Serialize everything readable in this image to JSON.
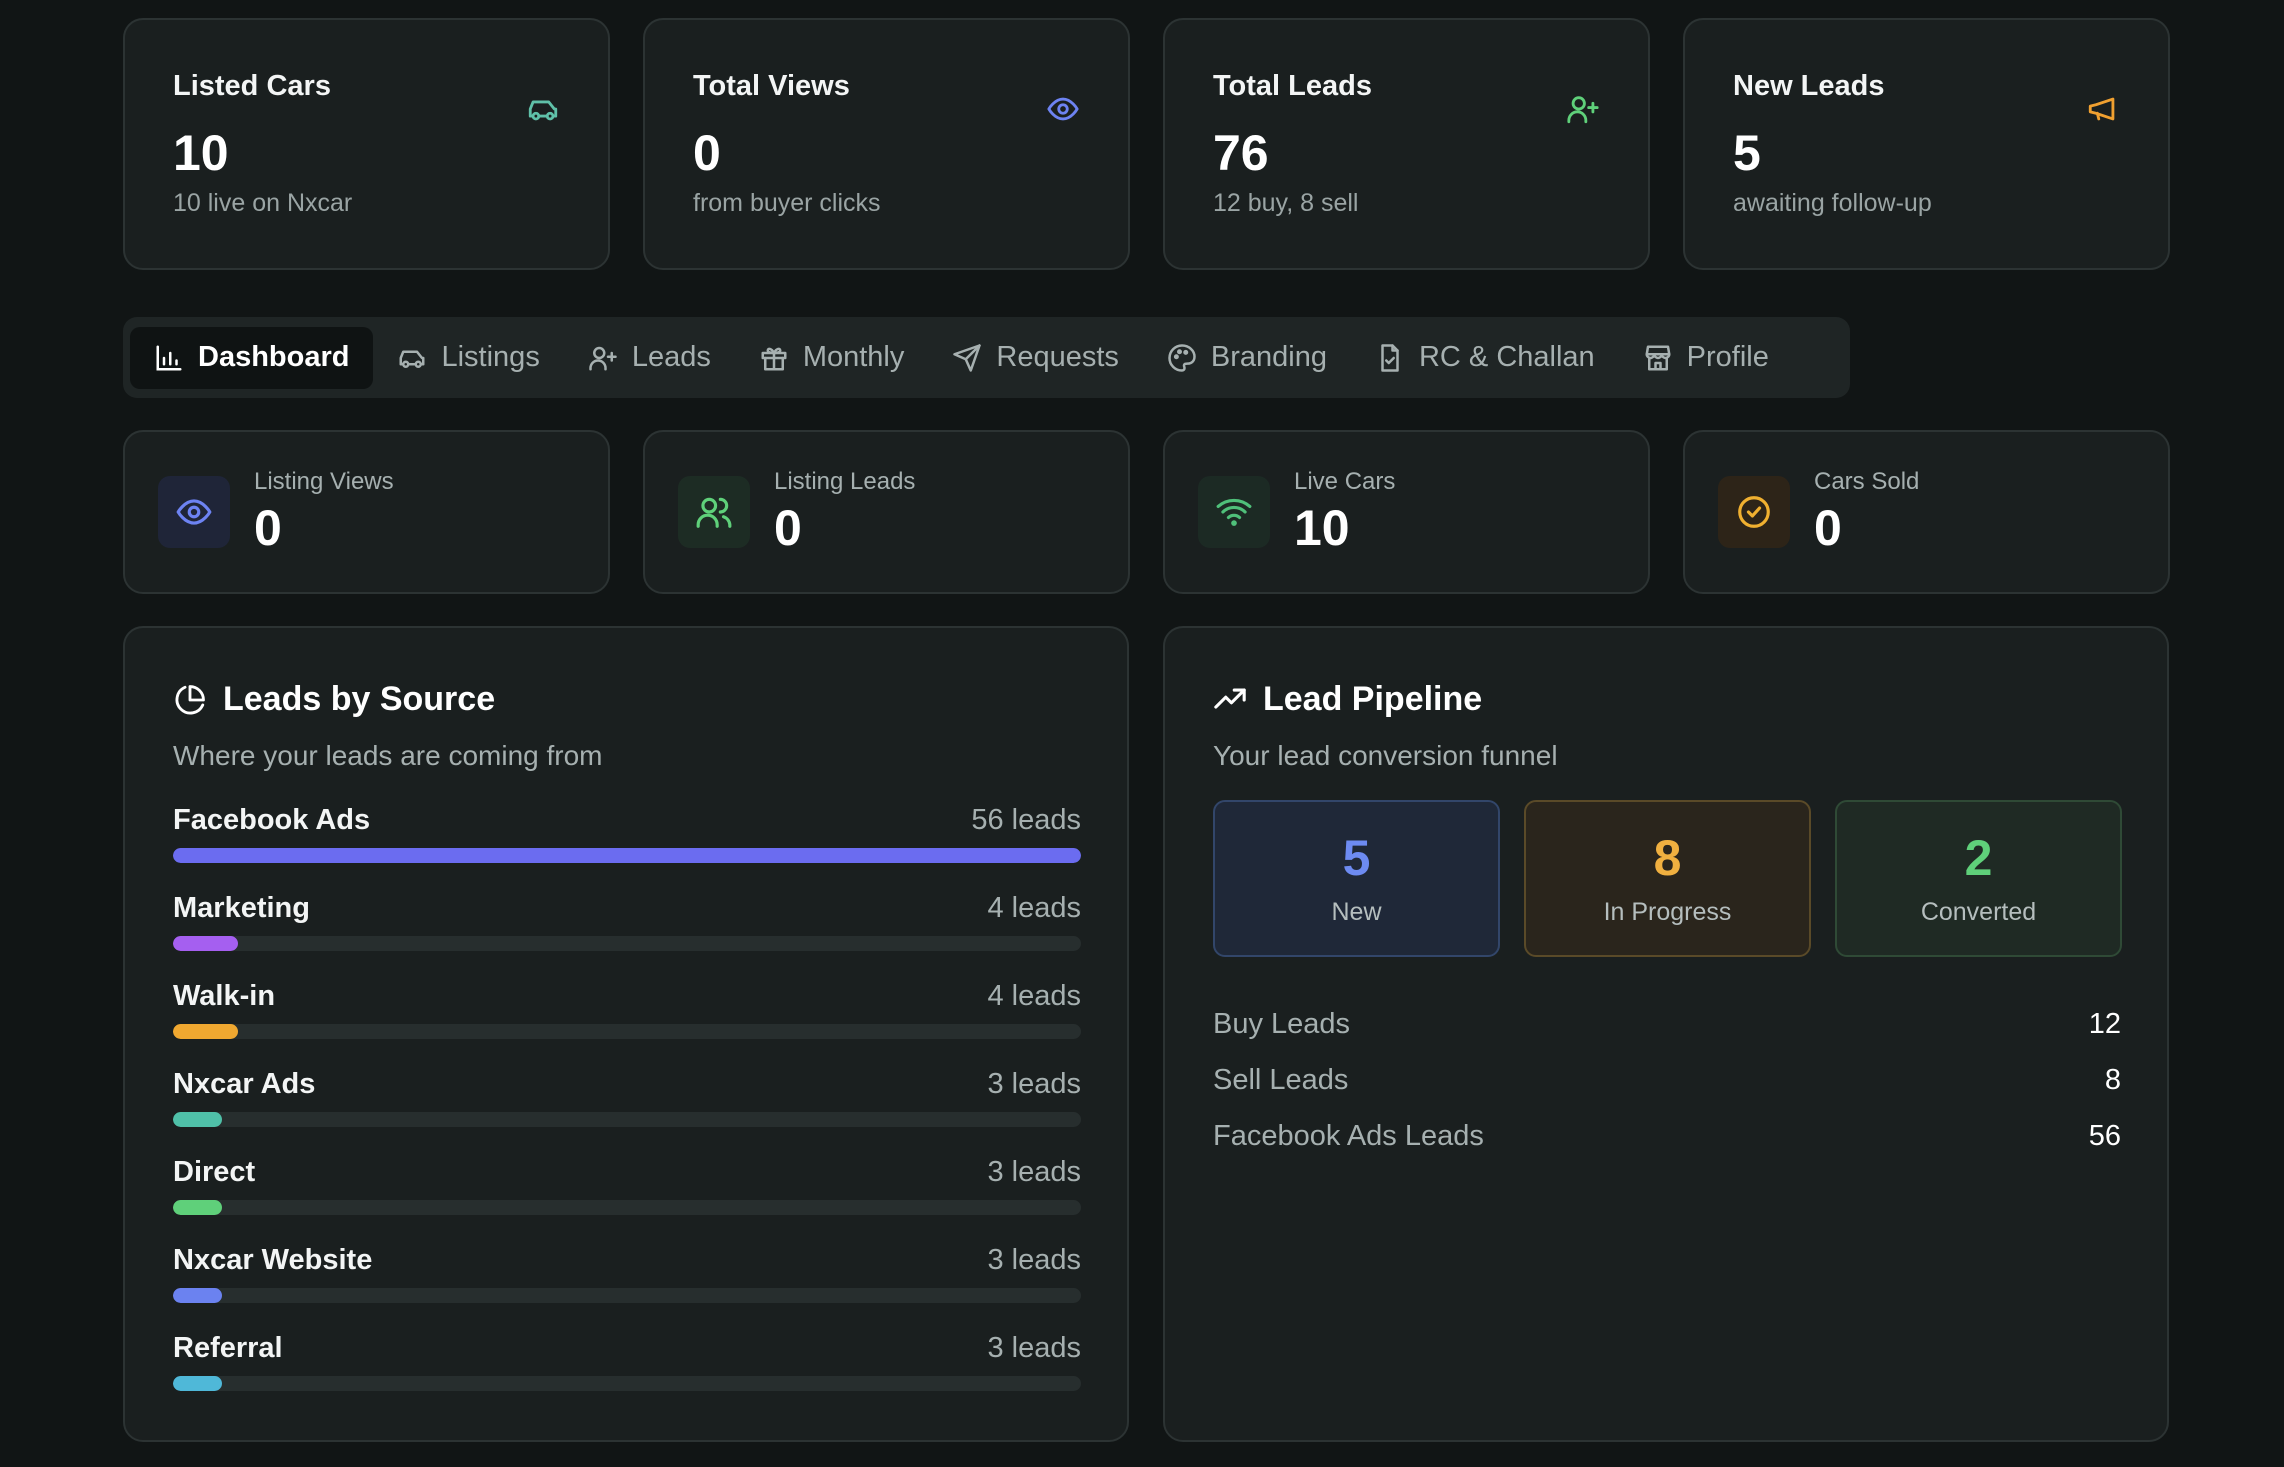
{
  "stats": [
    {
      "title": "Listed Cars",
      "value": "10",
      "sub": "10 live on Nxcar",
      "icon": "car-icon",
      "color": "#5fc0a8"
    },
    {
      "title": "Total Views",
      "value": "0",
      "sub": "from buyer clicks",
      "icon": "eye-icon",
      "color": "#6d83f2"
    },
    {
      "title": "Total Leads",
      "value": "76",
      "sub": "12 buy, 8 sell",
      "icon": "user-plus-icon",
      "color": "#5fd07a"
    },
    {
      "title": "New Leads",
      "value": "5",
      "sub": "awaiting follow-up",
      "icon": "megaphone-icon",
      "color": "#f0a030"
    }
  ],
  "tabs": [
    {
      "label": "Dashboard",
      "icon": "bar-chart-icon",
      "active": true
    },
    {
      "label": "Listings",
      "icon": "car-icon"
    },
    {
      "label": "Leads",
      "icon": "user-plus-icon"
    },
    {
      "label": "Monthly",
      "icon": "gift-icon"
    },
    {
      "label": "Requests",
      "icon": "send-icon"
    },
    {
      "label": "Branding",
      "icon": "palette-icon"
    },
    {
      "label": "RC & Challan",
      "icon": "file-check-icon"
    },
    {
      "label": "Profile",
      "icon": "store-icon"
    }
  ],
  "mini": [
    {
      "label": "Listing Views",
      "value": "0",
      "icon": "eye-icon",
      "color": "#6d83f2",
      "bg": "#1f2538"
    },
    {
      "label": "Listing Leads",
      "value": "0",
      "icon": "users-icon",
      "color": "#5fd07a",
      "bg": "#1d2c24"
    },
    {
      "label": "Live Cars",
      "value": "10",
      "icon": "wifi-icon",
      "color": "#4fc07a",
      "bg": "#1c2a24"
    },
    {
      "label": "Cars Sold",
      "value": "0",
      "icon": "check-circle-icon",
      "color": "#f0b030",
      "bg": "#2d2418"
    }
  ],
  "sources": {
    "title": "Leads by Source",
    "subtitle": "Where your leads are coming from",
    "max": 56,
    "items": [
      {
        "name": "Facebook Ads",
        "value": 56,
        "count_label": "56 leads",
        "color": "#6b6cf0"
      },
      {
        "name": "Marketing",
        "value": 4,
        "count_label": "4 leads",
        "color": "#a55ff0"
      },
      {
        "name": "Walk-in",
        "value": 4,
        "count_label": "4 leads",
        "color": "#f0a830"
      },
      {
        "name": "Nxcar Ads",
        "value": 3,
        "count_label": "3 leads",
        "color": "#4fc0a8"
      },
      {
        "name": "Direct",
        "value": 3,
        "count_label": "3 leads",
        "color": "#5fd07a"
      },
      {
        "name": "Nxcar Website",
        "value": 3,
        "count_label": "3 leads",
        "color": "#6b82f0"
      },
      {
        "name": "Referral",
        "value": 3,
        "count_label": "3 leads",
        "color": "#4fb8d8"
      }
    ]
  },
  "pipeline": {
    "title": "Lead Pipeline",
    "subtitle": "Your lead conversion funnel",
    "stages": [
      {
        "value": "5",
        "label": "New",
        "color": "#6d8bf2",
        "bg": "#1f2838",
        "border": "#32466a"
      },
      {
        "value": "8",
        "label": "In Progress",
        "color": "#f0b040",
        "bg": "#2a251c",
        "border": "#5a4a28"
      },
      {
        "value": "2",
        "label": "Converted",
        "color": "#5fd07a",
        "bg": "#1f2a24",
        "border": "#2f4a36"
      }
    ],
    "rows": [
      {
        "label": "Buy Leads",
        "value": "12"
      },
      {
        "label": "Sell Leads",
        "value": "8"
      },
      {
        "label": "Facebook Ads Leads",
        "value": "56"
      }
    ]
  }
}
